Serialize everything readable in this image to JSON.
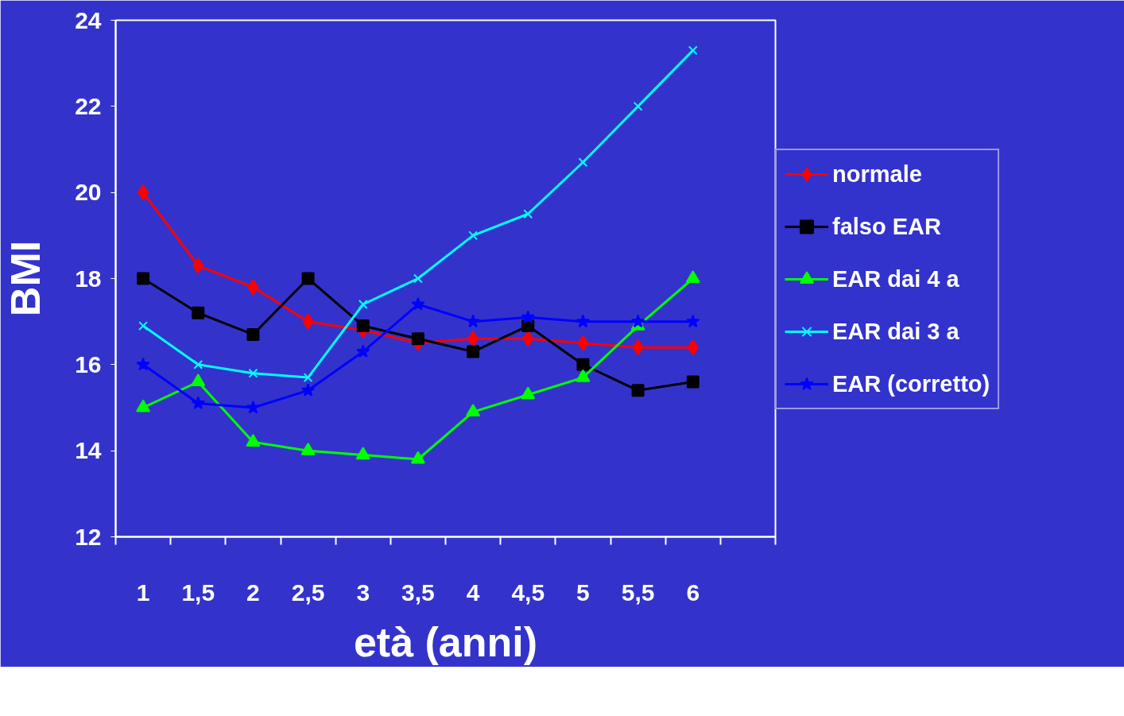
{
  "chart_data": {
    "type": "line",
    "xlabel": "età (anni)",
    "ylabel": "BMI",
    "categories": [
      "1",
      "1,5",
      "2",
      "2,5",
      "3",
      "3,5",
      "4",
      "4,5",
      "5",
      "5,5",
      "6",
      null
    ],
    "ylim": [
      12,
      24
    ],
    "yticks": [
      12,
      14,
      16,
      18,
      20,
      22,
      24
    ],
    "grid": false,
    "legend": "right",
    "line_style": "solid",
    "series": [
      {
        "name": "normale",
        "color": "#ff0000",
        "marker": "diamond",
        "values": [
          20.0,
          18.3,
          17.8,
          17.0,
          16.8,
          16.5,
          16.6,
          16.6,
          16.5,
          16.4,
          16.4,
          null
        ]
      },
      {
        "name": "falso EAR",
        "color": "#000000",
        "marker": "square",
        "values": [
          18.0,
          17.2,
          16.7,
          18.0,
          16.9,
          16.6,
          16.3,
          16.9,
          16.0,
          15.4,
          15.6,
          null
        ]
      },
      {
        "name": "EAR dai 4 a",
        "color": "#00ff00",
        "marker": "triangle",
        "values": [
          15.0,
          15.6,
          14.2,
          14.0,
          13.9,
          13.8,
          14.9,
          15.3,
          15.7,
          16.9,
          18.0,
          null
        ]
      },
      {
        "name": "EAR dai 3 a",
        "color": "#00ffff",
        "marker": "cross",
        "values": [
          16.9,
          16.0,
          15.8,
          15.7,
          17.4,
          18.0,
          19.0,
          19.5,
          20.7,
          22.0,
          23.3,
          null
        ]
      },
      {
        "name": "EAR (corretto)",
        "color": "#0000ff",
        "marker": "star",
        "values": [
          16.0,
          15.1,
          15.0,
          15.4,
          16.3,
          17.4,
          17.0,
          17.1,
          17.0,
          17.0,
          17.0,
          null
        ]
      }
    ]
  }
}
